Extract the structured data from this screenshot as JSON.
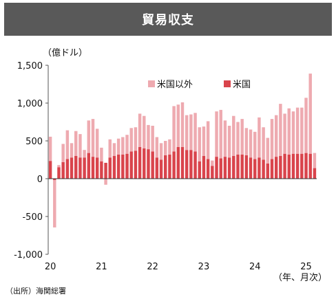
{
  "header": {
    "title": "貿易収支"
  },
  "source": "（出所）海関総署",
  "chart_data": {
    "type": "bar",
    "stacked": true,
    "title": "貿易収支",
    "unit_label": "（億ドル）",
    "x_unit_label": "（年、月次）",
    "ylim": [
      -1000,
      1500
    ],
    "y_ticks": [
      -1000,
      -500,
      0,
      500,
      1000,
      1500
    ],
    "y_tick_labels": [
      "-1,000",
      "-500",
      "0",
      "500",
      "1,000",
      "1,500"
    ],
    "x_tick_labels": [
      "20",
      "21",
      "22",
      "23",
      "24",
      "25"
    ],
    "x_tick_index": [
      0,
      12,
      24,
      36,
      48,
      60
    ],
    "grid": false,
    "legend_position": "top-right",
    "colors": {
      "米国": "#d9444c",
      "米国以外": "#eeaab0"
    },
    "series": [
      {
        "name": "米国",
        "values": [
          235,
          -20,
          150,
          220,
          260,
          280,
          300,
          280,
          280,
          340,
          290,
          280,
          230,
          210,
          280,
          300,
          320,
          320,
          330,
          360,
          370,
          420,
          400,
          390,
          360,
          280,
          250,
          310,
          320,
          360,
          420,
          420,
          380,
          380,
          360,
          230,
          300,
          260,
          170,
          290,
          270,
          290,
          280,
          300,
          320,
          320,
          310,
          280,
          260,
          280,
          250,
          200,
          260,
          290,
          300,
          330,
          320,
          330,
          330,
          330,
          340,
          330,
          140
        ]
      },
      {
        "name": "米国以外",
        "values": [
          320,
          -625,
          30,
          240,
          380,
          190,
          330,
          310,
          100,
          430,
          500,
          380,
          180,
          -80,
          240,
          170,
          210,
          230,
          250,
          310,
          310,
          440,
          430,
          320,
          340,
          270,
          220,
          190,
          200,
          600,
          560,
          590,
          460,
          470,
          510,
          450,
          390,
          500,
          70,
          600,
          640,
          480,
          420,
          530,
          430,
          470,
          360,
          370,
          360,
          530,
          430,
          340,
          530,
          550,
          690,
          530,
          610,
          560,
          610,
          610,
          730,
          1060,
          200
        ]
      }
    ]
  }
}
